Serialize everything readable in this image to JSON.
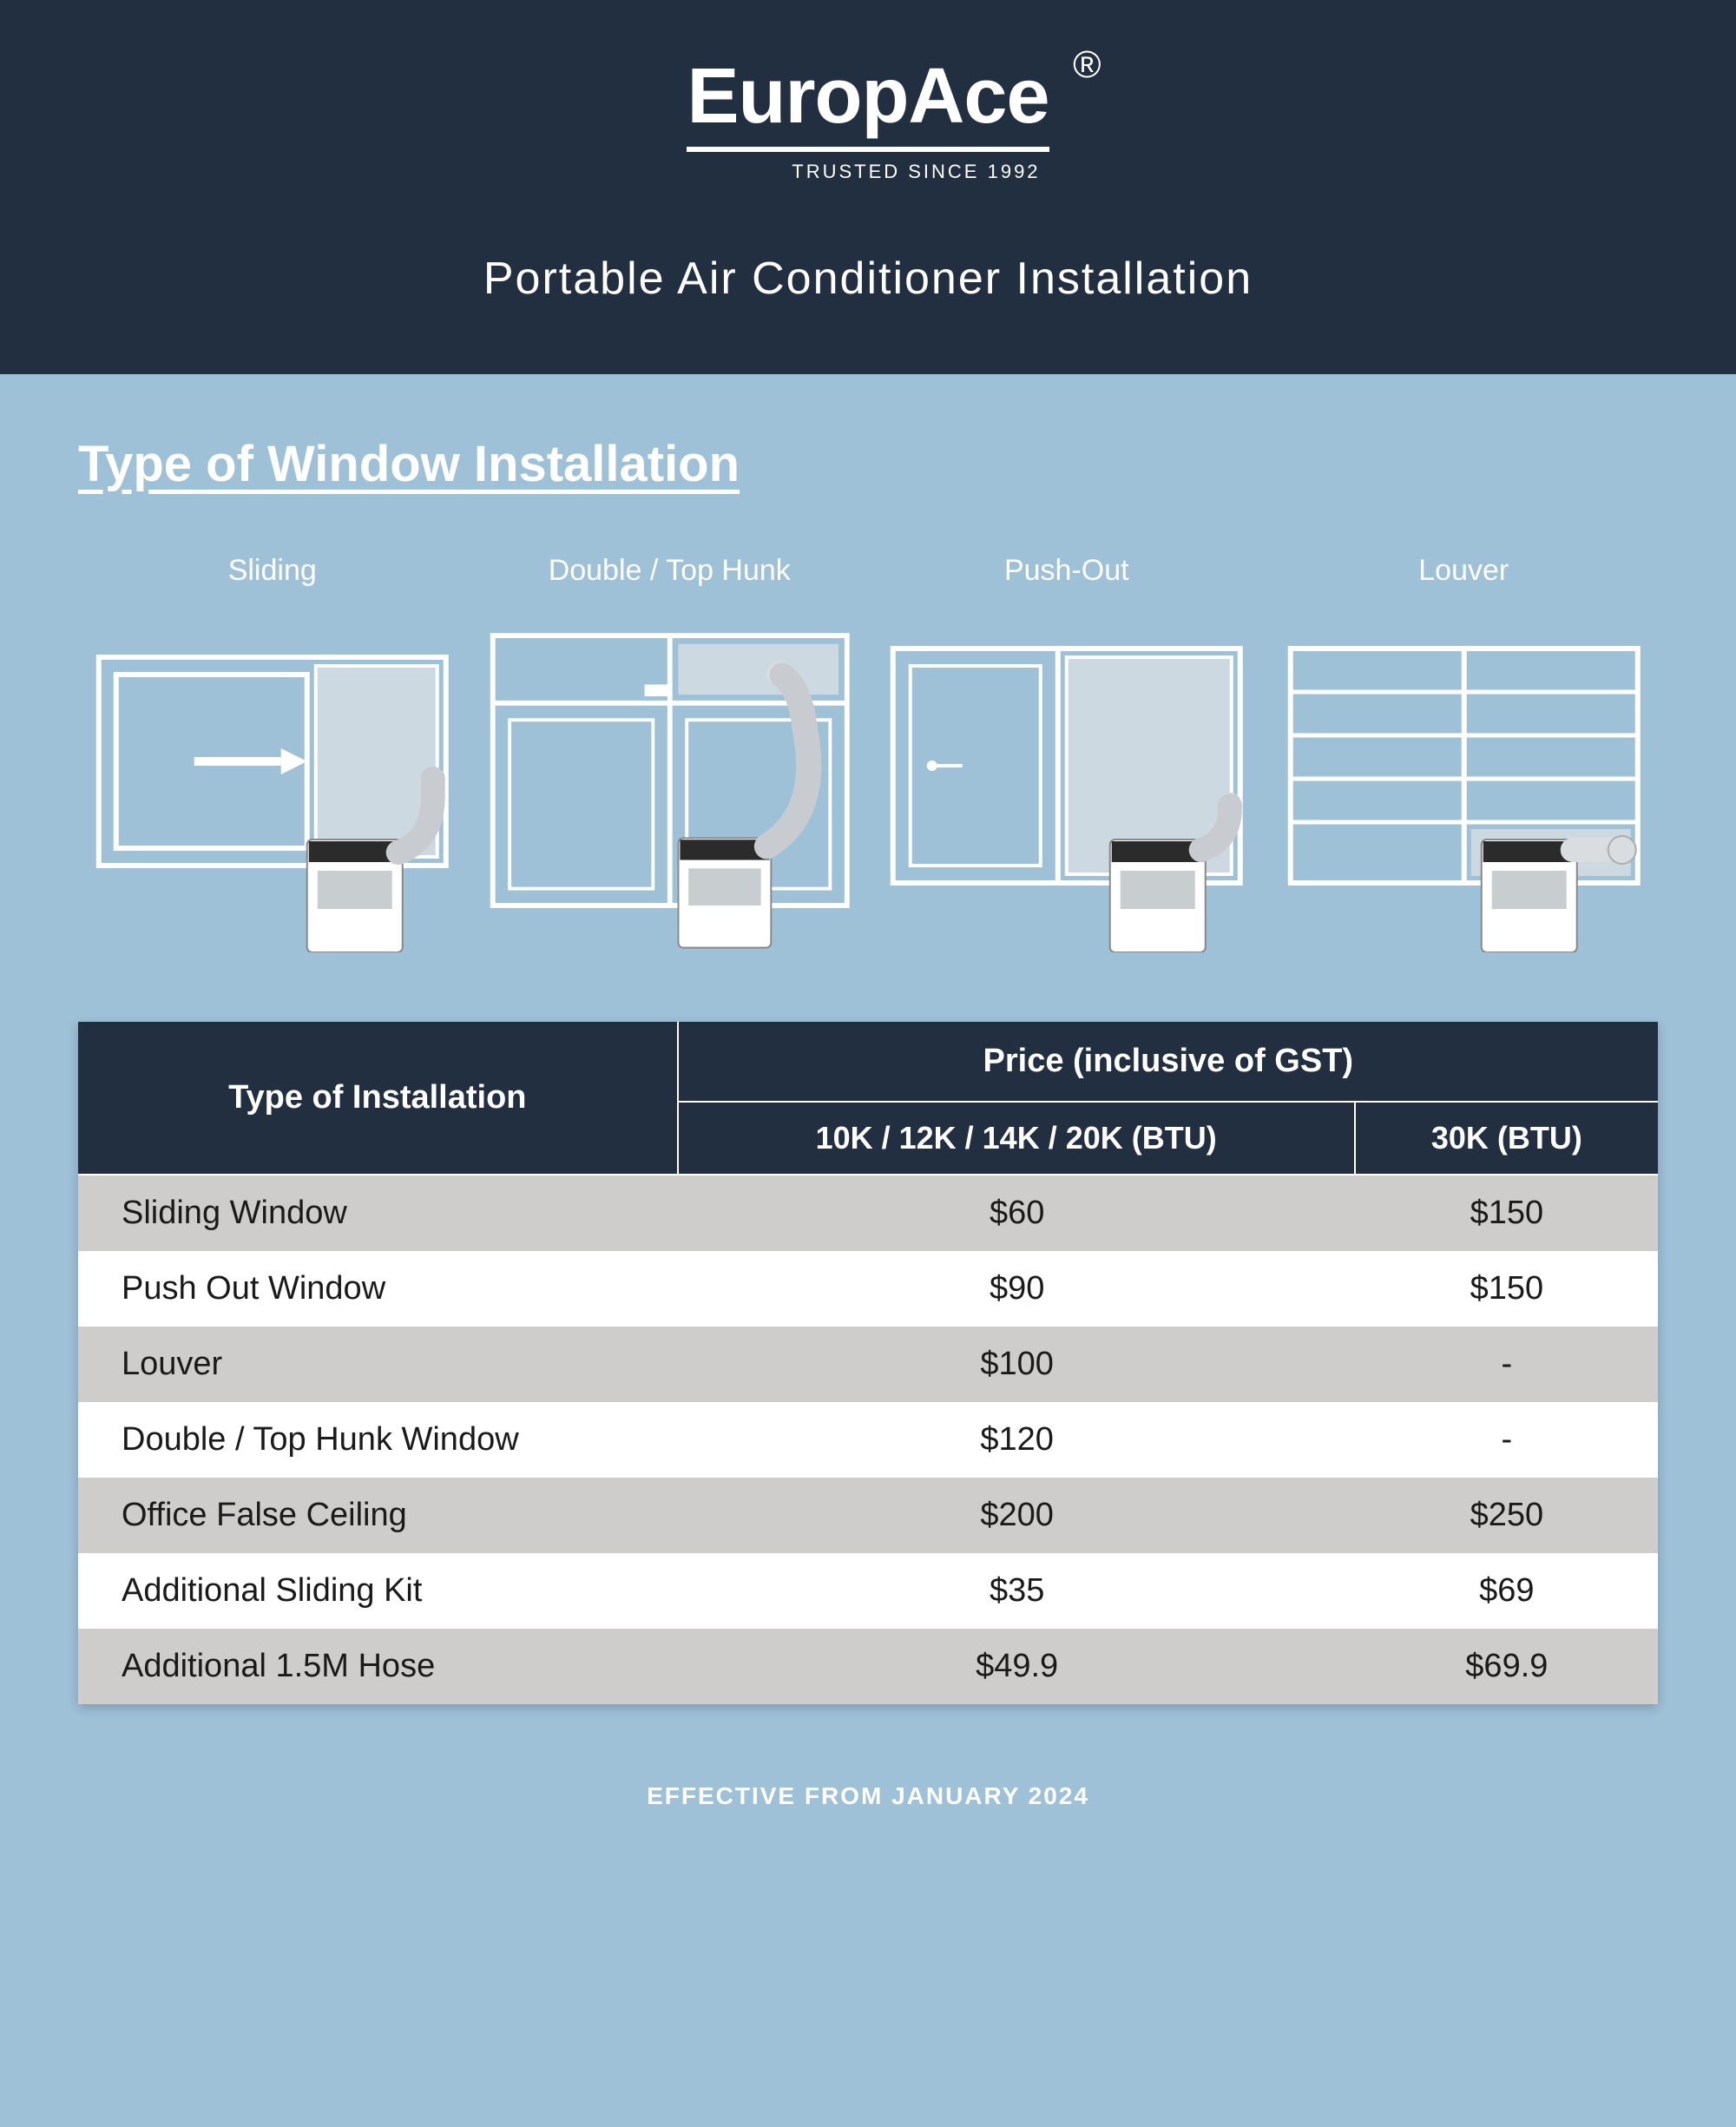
{
  "colors": {
    "header_bg": "#222f41",
    "body_bg": "#9ec1d8",
    "row_odd": "#cfcccc",
    "row_even": "#ffffff",
    "text_dark": "#1a1a1a",
    "text_light": "#ffffff"
  },
  "brand": {
    "name": "EuropAce",
    "registered": "®",
    "tagline": "TRUSTED SINCE 1992"
  },
  "subtitle": "Portable Air Conditioner Installation",
  "section_title": "Type of Window Installation",
  "window_types": [
    {
      "label": "Sliding"
    },
    {
      "label": "Double / Top Hunk"
    },
    {
      "label": "Push-Out"
    },
    {
      "label": "Louver"
    }
  ],
  "table": {
    "head": {
      "type": "Type of Installation",
      "price": "Price (inclusive of GST)",
      "col_a": "10K / 12K / 14K / 20K (BTU)",
      "col_b": "30K (BTU)"
    },
    "rows": [
      {
        "name": "Sliding Window",
        "a": "$60",
        "b": "$150"
      },
      {
        "name": "Push Out Window",
        "a": "$90",
        "b": "$150"
      },
      {
        "name": "Louver",
        "a": "$100",
        "b": "-"
      },
      {
        "name": "Double / Top Hunk Window",
        "a": "$120",
        "b": "-"
      },
      {
        "name": "Office False Ceiling",
        "a": "$200",
        "b": "$250"
      },
      {
        "name": "Additional Sliding Kit",
        "a": "$35",
        "b": "$69"
      },
      {
        "name": "Additional 1.5M Hose",
        "a": "$49.9",
        "b": "$69.9"
      }
    ]
  },
  "footer": "EFFECTIVE FROM JANUARY 2024",
  "diagram_style": {
    "stroke": "#ffffff",
    "stroke_width": 4,
    "panel_fill": "#cdd9e0",
    "unit_fill": "#ffffff",
    "unit_top": "#2b2b2b",
    "hose_stroke": "#d9dde0",
    "hose_width": 22
  }
}
